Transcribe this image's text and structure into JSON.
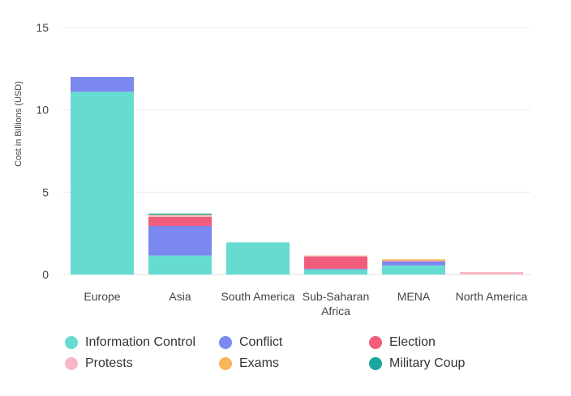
{
  "chart_data": {
    "type": "bar",
    "stacked": true,
    "categories": [
      "Europe",
      "Asia",
      "South America",
      "Sub-Saharan Africa",
      "MENA",
      "North America"
    ],
    "category_lines": [
      [
        "Europe"
      ],
      [
        "Asia"
      ],
      [
        "South America"
      ],
      [
        "Sub-Saharan",
        "Africa"
      ],
      [
        "MENA"
      ],
      [
        "North America"
      ]
    ],
    "series": [
      {
        "name": "Information Control",
        "color": "#66dbd0",
        "values": [
          11.1,
          1.15,
          1.95,
          0.3,
          0.55,
          0
        ]
      },
      {
        "name": "Conflict",
        "color": "#7b88f0",
        "values": [
          0.9,
          1.8,
          0,
          0.05,
          0.25,
          0
        ]
      },
      {
        "name": "Election",
        "color": "#ef5d7a",
        "values": [
          0,
          0.55,
          0,
          0.75,
          0.02,
          0
        ]
      },
      {
        "name": "Protests",
        "color": "#f7b7c4",
        "values": [
          0,
          0.1,
          0,
          0.02,
          0.02,
          0.15
        ]
      },
      {
        "name": "Exams",
        "color": "#f8b55c",
        "values": [
          0,
          0.03,
          0,
          0.03,
          0.08,
          0
        ]
      },
      {
        "name": "Military Coup",
        "color": "#1aa69a",
        "values": [
          0,
          0.07,
          0,
          0,
          0,
          0
        ]
      }
    ],
    "yticks": [
      0,
      5,
      10,
      15
    ],
    "ylim": [
      0,
      15
    ],
    "title": "",
    "xlabel": "",
    "ylabel": "Cost in Billions (USD)",
    "grid": true,
    "legend_position": "bottom"
  }
}
